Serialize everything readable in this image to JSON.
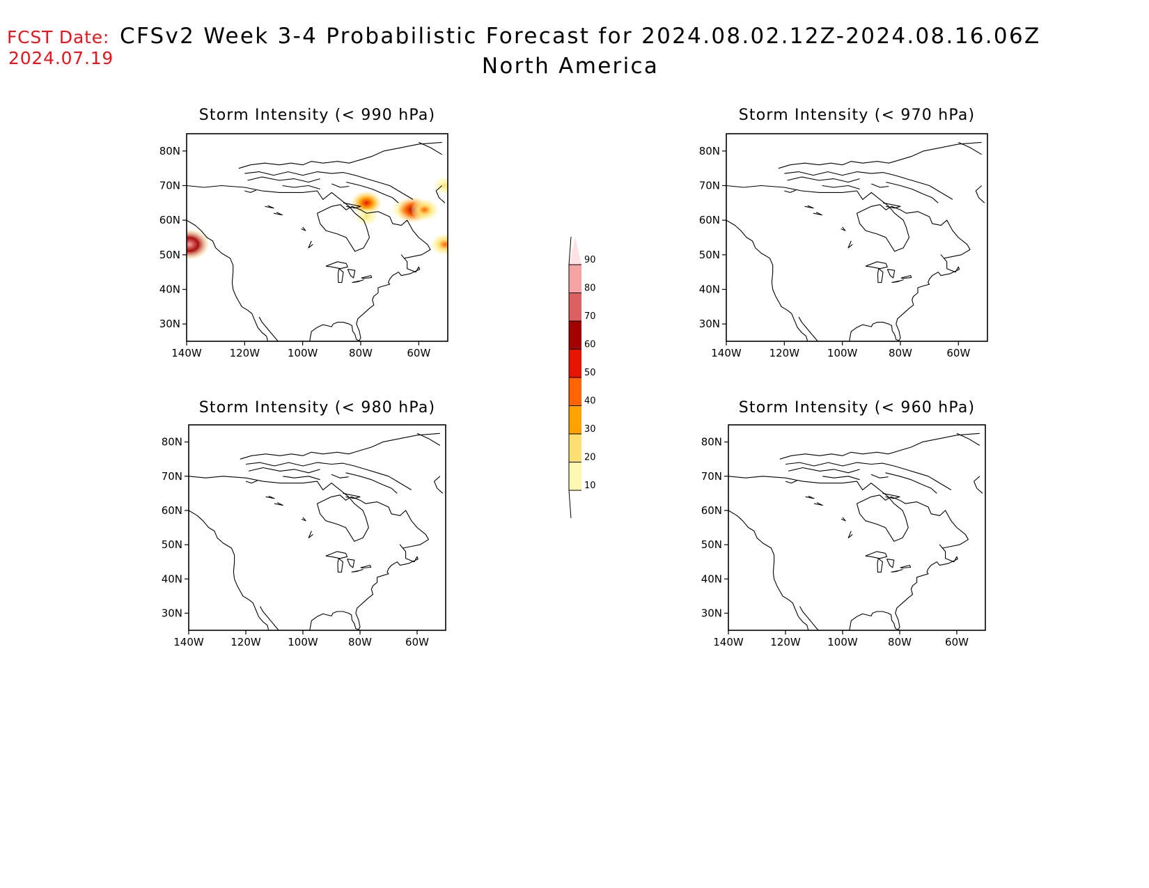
{
  "header": {
    "fcst_label": "FCST Date:",
    "fcst_date": "2024.07.19",
    "title": "CFSv2 Week 3-4 Probabilistic Forecast for 2024.08.02.12Z-2024.08.16.06Z",
    "subtitle": "North America"
  },
  "axes": {
    "lon_ticks": [
      "140W",
      "120W",
      "100W",
      "80W",
      "60W"
    ],
    "lat_ticks": [
      "80N",
      "70N",
      "60N",
      "50N",
      "40N",
      "30N"
    ]
  },
  "panels": [
    {
      "id": "990",
      "title": "Storm Intensity (< 990 hPa)",
      "hotspots": [
        {
          "lon": -78,
          "lat": 65,
          "prob": 50
        },
        {
          "lon": -78,
          "lat": 61,
          "prob": 20
        },
        {
          "lon": -65,
          "lat": 63,
          "prob": 30
        },
        {
          "lon": -62,
          "lat": 63,
          "prob": 60
        },
        {
          "lon": -58,
          "lat": 63,
          "prob": 40
        },
        {
          "lon": -51,
          "lat": 53,
          "prob": 40
        },
        {
          "lon": -51,
          "lat": 70,
          "prob": 20
        },
        {
          "lon": -139,
          "lat": 53,
          "prob": 80
        }
      ]
    },
    {
      "id": "970",
      "title": "Storm Intensity (< 970 hPa)",
      "hotspots": []
    },
    {
      "id": "980",
      "title": "Storm Intensity (< 980 hPa)",
      "hotspots": []
    },
    {
      "id": "960",
      "title": "Storm Intensity (< 960 hPa)",
      "hotspots": []
    }
  ],
  "colorbar": {
    "labels": [
      "10",
      "20",
      "30",
      "40",
      "50",
      "60",
      "70",
      "80",
      "90"
    ],
    "colors": [
      "#fff8b0",
      "#ffe070",
      "#ffa200",
      "#ff6400",
      "#e61400",
      "#a50000",
      "#dd6060",
      "#f5a3a3",
      "#fde3e3"
    ]
  }
}
